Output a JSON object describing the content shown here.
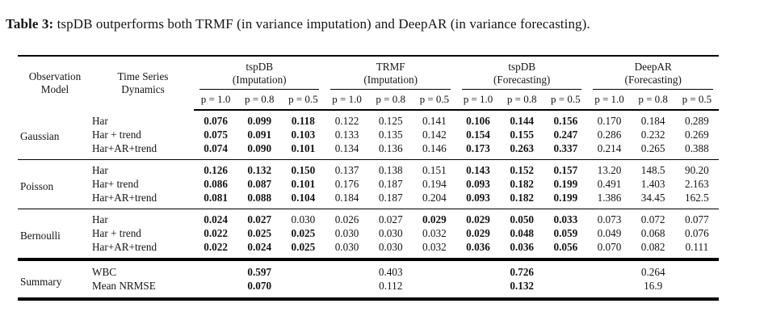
{
  "title": {
    "prefix": "Table 3:",
    "text": "tspDB outperforms both TRMF (in variance imputation) and DeepAR (in variance forecasting)."
  },
  "header": {
    "col1": [
      "Observation",
      "Model"
    ],
    "col2": [
      "Time Series",
      "Dynamics"
    ],
    "groups": [
      {
        "name": "tspDB",
        "mode": "(Imputation)"
      },
      {
        "name": "TRMF",
        "mode": "(Imputation)"
      },
      {
        "name": "tspDB",
        "mode": "(Forecasting)"
      },
      {
        "name": "DeepAR",
        "mode": "(Forecasting)"
      }
    ],
    "p_labels": [
      "p = 1.0",
      "p = 0.8",
      "p = 0.5"
    ]
  },
  "blocks": [
    {
      "model": "Gaussian",
      "rows": [
        {
          "dynamics": "Har",
          "values": [
            "0.076",
            "0.099",
            "0.118",
            "0.122",
            "0.125",
            "0.141",
            "0.106",
            "0.144",
            "0.156",
            "0.170",
            "0.184",
            "0.289"
          ],
          "bold": [
            1,
            1,
            1,
            0,
            0,
            0,
            1,
            1,
            1,
            0,
            0,
            0
          ]
        },
        {
          "dynamics": "Har + trend",
          "values": [
            "0.075",
            "0.091",
            "0.103",
            "0.133",
            "0.135",
            "0.142",
            "0.154",
            "0.155",
            "0.247",
            "0.286",
            "0.232",
            "0.269"
          ],
          "bold": [
            1,
            1,
            1,
            0,
            0,
            0,
            1,
            1,
            1,
            0,
            0,
            0
          ]
        },
        {
          "dynamics": "Har+AR+trend",
          "values": [
            "0.074",
            "0.090",
            "0.101",
            "0.134",
            "0.136",
            "0.146",
            "0.173",
            "0.263",
            "0.337",
            "0.214",
            "0.265",
            "0.388"
          ],
          "bold": [
            1,
            1,
            1,
            0,
            0,
            0,
            1,
            1,
            1,
            0,
            0,
            0
          ]
        }
      ]
    },
    {
      "model": "Poisson",
      "rows": [
        {
          "dynamics": "Har",
          "values": [
            "0.126",
            "0.132",
            "0.150",
            "0.137",
            "0.138",
            "0.151",
            "0.143",
            "0.152",
            "0.157",
            "13.20",
            "148.5",
            "90.20"
          ],
          "bold": [
            1,
            1,
            1,
            0,
            0,
            0,
            1,
            1,
            1,
            0,
            0,
            0
          ]
        },
        {
          "dynamics": "Har+ trend",
          "values": [
            "0.086",
            "0.087",
            "0.101",
            "0.176",
            "0.187",
            "0.194",
            "0.093",
            "0.182",
            "0.199",
            "0.491",
            "1.403",
            "2.163"
          ],
          "bold": [
            1,
            1,
            1,
            0,
            0,
            0,
            1,
            1,
            1,
            0,
            0,
            0
          ]
        },
        {
          "dynamics": "Har+AR+trend",
          "values": [
            "0.081",
            "0.088",
            "0.104",
            "0.184",
            "0.187",
            "0.204",
            "0.093",
            "0.182",
            "0.199",
            "1.386",
            "34.45",
            "162.5"
          ],
          "bold": [
            1,
            1,
            1,
            0,
            0,
            0,
            1,
            1,
            1,
            0,
            0,
            0
          ]
        }
      ]
    },
    {
      "model": "Bernoulli",
      "rows": [
        {
          "dynamics": "Har",
          "values": [
            "0.024",
            "0.027",
            "0.030",
            "0.026",
            "0.027",
            "0.029",
            "0.029",
            "0.050",
            "0.033",
            "0.073",
            "0.072",
            "0.077"
          ],
          "bold": [
            1,
            1,
            0,
            0,
            0,
            1,
            1,
            1,
            1,
            0,
            0,
            0
          ]
        },
        {
          "dynamics": "Har + trend",
          "values": [
            "0.022",
            "0.025",
            "0.025",
            "0.030",
            "0.030",
            "0.032",
            "0.029",
            "0.048",
            "0.059",
            "0.049",
            "0.068",
            "0.076"
          ],
          "bold": [
            1,
            1,
            1,
            0,
            0,
            0,
            1,
            1,
            1,
            0,
            0,
            0
          ]
        },
        {
          "dynamics": "Har+AR+trend",
          "values": [
            "0.022",
            "0.024",
            "0.025",
            "0.030",
            "0.030",
            "0.032",
            "0.036",
            "0.036",
            "0.056",
            "0.070",
            "0.082",
            "0.111"
          ],
          "bold": [
            1,
            1,
            1,
            0,
            0,
            0,
            1,
            1,
            1,
            0,
            0,
            0
          ]
        }
      ]
    }
  ],
  "summary": {
    "model": "Summary",
    "rows": [
      {
        "label": "WBC",
        "values": [
          "0.597",
          "0.403",
          "0.726",
          "0.264"
        ],
        "bold": [
          1,
          0,
          1,
          0
        ]
      },
      {
        "label": "Mean NRMSE",
        "values": [
          "0.070",
          "0.112",
          "0.132",
          "16.9"
        ],
        "bold": [
          1,
          0,
          1,
          0
        ]
      }
    ]
  }
}
